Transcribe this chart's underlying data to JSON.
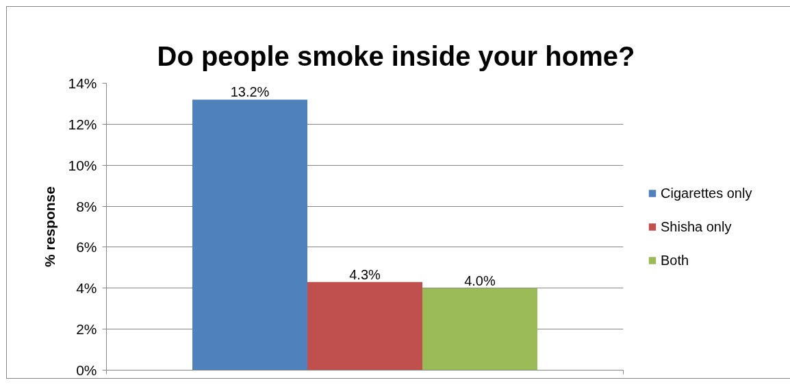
{
  "chart_data": {
    "type": "bar",
    "title": "Do people smoke inside your home?",
    "ylabel": "% response",
    "categories": [
      null
    ],
    "series": [
      {
        "name": "Cigarettes only",
        "color": "#4f81bd",
        "values": [
          13.2
        ],
        "value_labels": [
          "13.2%"
        ]
      },
      {
        "name": "Shisha only",
        "color": "#c0504d",
        "values": [
          4.3
        ],
        "value_labels": [
          "4.3%"
        ]
      },
      {
        "name": "Both",
        "color": "#9bbb59",
        "values": [
          4.0
        ],
        "value_labels": [
          "4.0%"
        ]
      }
    ],
    "ylim": [
      0,
      14
    ],
    "yticks": [
      {
        "value": 0,
        "label": "0%"
      },
      {
        "value": 2,
        "label": "2%"
      },
      {
        "value": 4,
        "label": "4%"
      },
      {
        "value": 6,
        "label": "6%"
      },
      {
        "value": 8,
        "label": "8%"
      },
      {
        "value": 10,
        "label": "10%"
      },
      {
        "value": 12,
        "label": "12%"
      },
      {
        "value": 14,
        "label": "14%"
      }
    ],
    "grid": "y",
    "legend": "right"
  }
}
